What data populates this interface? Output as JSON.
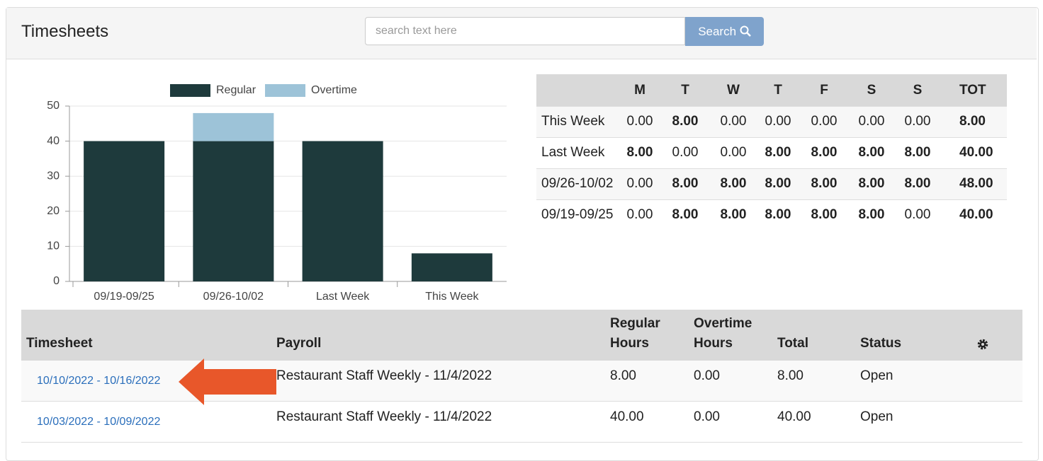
{
  "header": {
    "title": "Timesheets",
    "search_placeholder": "search text here",
    "search_button": "Search"
  },
  "chart_data": {
    "type": "bar",
    "stacked": true,
    "legend": "top",
    "categories": [
      "09/19-09/25",
      "09/26-10/02",
      "Last Week",
      "This Week"
    ],
    "series": [
      {
        "name": "Regular",
        "color": "#1e3a3c",
        "values": [
          40,
          40,
          40,
          8
        ]
      },
      {
        "name": "Overtime",
        "color": "#9dc3d8",
        "values": [
          0,
          8,
          0,
          0
        ]
      }
    ],
    "ylim": [
      0,
      50
    ],
    "yticks": [
      0,
      10,
      20,
      30,
      40,
      50
    ],
    "grid": true
  },
  "summary_table": {
    "columns": [
      "M",
      "T",
      "W",
      "T",
      "F",
      "S",
      "S",
      "TOT"
    ],
    "rows": [
      {
        "label": "This Week",
        "values": [
          "0.00",
          "8.00",
          "0.00",
          "0.00",
          "0.00",
          "0.00",
          "0.00",
          "8.00"
        ]
      },
      {
        "label": "Last Week",
        "values": [
          "8.00",
          "0.00",
          "0.00",
          "8.00",
          "8.00",
          "8.00",
          "8.00",
          "40.00"
        ]
      },
      {
        "label": "09/26-10/02",
        "values": [
          "0.00",
          "8.00",
          "8.00",
          "8.00",
          "8.00",
          "8.00",
          "8.00",
          "48.00"
        ]
      },
      {
        "label": "09/19-09/25",
        "values": [
          "0.00",
          "8.00",
          "8.00",
          "8.00",
          "8.00",
          "8.00",
          "0.00",
          "40.00"
        ]
      }
    ]
  },
  "timesheets_table": {
    "columns": [
      "Timesheet",
      "Payroll",
      "Regular Hours",
      "Overtime Hours",
      "Total",
      "Status"
    ],
    "rows": [
      [
        "10/10/2022 - 10/16/2022",
        "Restaurant Staff Weekly - 11/4/2022",
        "8.00",
        "0.00",
        "8.00",
        "Open"
      ],
      [
        "10/03/2022 - 10/09/2022",
        "Restaurant Staff Weekly - 11/4/2022",
        "40.00",
        "0.00",
        "40.00",
        "Open"
      ]
    ]
  }
}
